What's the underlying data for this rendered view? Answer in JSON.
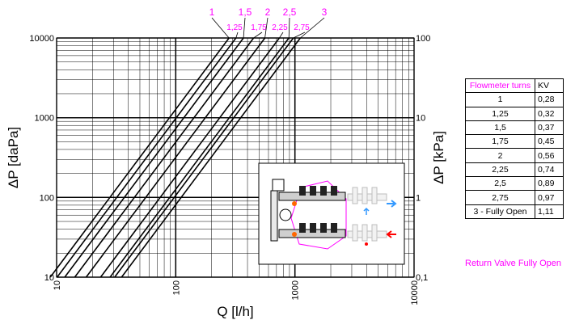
{
  "chart_data": {
    "type": "line",
    "xlabel": "Q [l/h]",
    "ylabel": "ΔP [daPa]",
    "ylabel_right": "ΔP [kPa]",
    "xscale": "log",
    "yscale": "log",
    "xlim": [
      10,
      10000
    ],
    "ylim": [
      10,
      10000
    ],
    "ylim_right": [
      0.1,
      100
    ],
    "grid": true,
    "x_ticks": [
      "10",
      "100",
      "1000",
      "10000"
    ],
    "y_ticks": [
      "10",
      "100",
      "1000",
      "10000"
    ],
    "y_ticks_right": [
      "0,1",
      "1",
      "10",
      "100"
    ],
    "series": [
      {
        "name": "1",
        "kv": 0.28,
        "x": [
          8.85,
          280
        ],
        "y": [
          10,
          10000
        ]
      },
      {
        "name": "1,25",
        "kv": 0.32,
        "x": [
          10.1,
          320
        ],
        "y": [
          10,
          10000
        ]
      },
      {
        "name": "1,5",
        "kv": 0.37,
        "x": [
          11.7,
          370
        ],
        "y": [
          10,
          10000
        ]
      },
      {
        "name": "1,75",
        "kv": 0.45,
        "x": [
          14.2,
          450
        ],
        "y": [
          10,
          10000
        ]
      },
      {
        "name": "2",
        "kv": 0.56,
        "x": [
          17.7,
          560
        ],
        "y": [
          10,
          10000
        ]
      },
      {
        "name": "2,25",
        "kv": 0.74,
        "x": [
          23.4,
          740
        ],
        "y": [
          10,
          10000
        ]
      },
      {
        "name": "2,5",
        "kv": 0.89,
        "x": [
          28.1,
          890
        ],
        "y": [
          10,
          10000
        ]
      },
      {
        "name": "2,75",
        "kv": 0.97,
        "x": [
          30.7,
          970
        ],
        "y": [
          10,
          10000
        ]
      },
      {
        "name": "3",
        "kv": 1.11,
        "x": [
          35.1,
          1110
        ],
        "y": [
          10,
          10000
        ]
      }
    ],
    "curve_labels_top": [
      "1",
      "1,5",
      "2",
      "2,5",
      "3"
    ],
    "curve_labels_bottom": [
      "1,25",
      "1,75",
      "2,25",
      "2,75"
    ],
    "colors": {
      "curves": "#000000",
      "labels": "#ff00ff",
      "grid": "#000000",
      "blue_arrow": "#3399ff",
      "red_arrow": "#ff0000",
      "orange": "#ff6600"
    }
  },
  "table": {
    "headers": [
      "Flowmeter turns",
      "KV"
    ],
    "rows": [
      [
        "1",
        "0,28"
      ],
      [
        "1,25",
        "0,32"
      ],
      [
        "1,5",
        "0,37"
      ],
      [
        "1,75",
        "0,45"
      ],
      [
        "2",
        "0,56"
      ],
      [
        "2,25",
        "0,74"
      ],
      [
        "2,5",
        "0,89"
      ],
      [
        "2,75",
        "0,97"
      ],
      [
        "3 - Fully Open",
        "1,11"
      ]
    ]
  },
  "note": "Return Valve Fully Open"
}
